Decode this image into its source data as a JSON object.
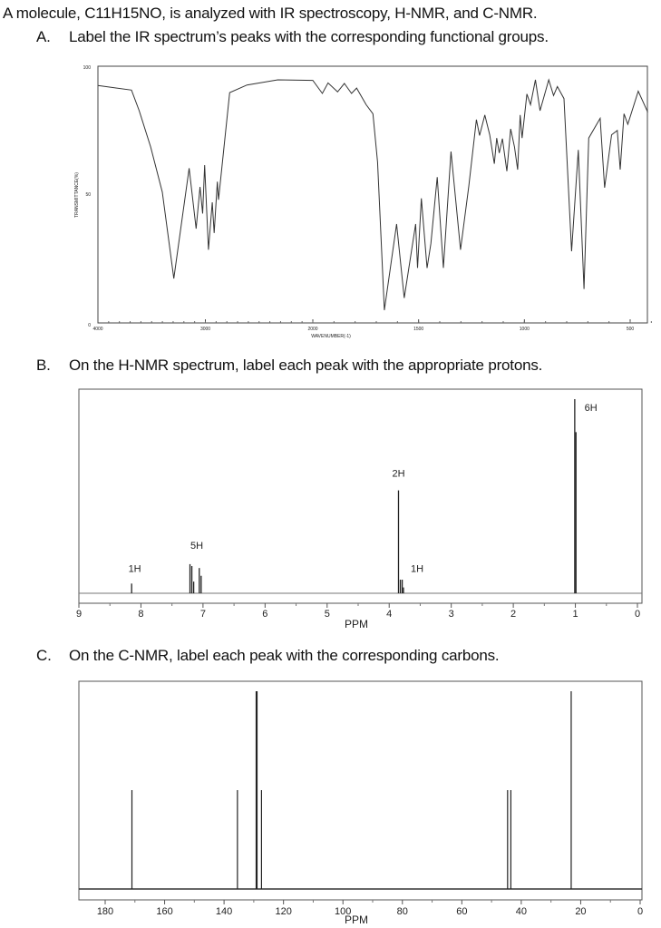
{
  "header": {
    "title": "A molecule, C11H15NO, is analyzed with IR spectroscopy, H-NMR, and C-NMR."
  },
  "questions": [
    {
      "letter": "A.",
      "text": "Label the IR spectrum’s peaks with the corresponding functional groups."
    },
    {
      "letter": "B.",
      "text": "On the H-NMR spectrum, label each peak with the appropriate protons."
    },
    {
      "letter": "C.",
      "text": "On the C-NMR, label each peak with the corresponding carbons."
    }
  ],
  "chart_data": [
    {
      "type": "line",
      "xlabel": "WAVENUMBER(-1)",
      "ylabel": "TRANSMITTANCE(%)",
      "xlim": [
        4000,
        400
      ],
      "ylim": [
        0,
        100
      ],
      "xticks": [
        "4000",
        "3000",
        "2000",
        "1500",
        "1000",
        "500"
      ],
      "yticks": [
        "100",
        "50",
        "0"
      ],
      "x": [
        4000,
        3688,
        3616,
        3509,
        3401,
        3294,
        3151,
        3086,
        3050,
        3025,
        3007,
        2971,
        2936,
        2918,
        2889,
        2878,
        2774,
        2613,
        2326,
        2000,
        1955,
        1928,
        1883,
        1851,
        1817,
        1793,
        1748,
        1716,
        1694,
        1662,
        1604,
        1568,
        1514,
        1505,
        1487,
        1460,
        1442,
        1412,
        1383,
        1347,
        1302,
        1263,
        1227,
        1212,
        1187,
        1164,
        1142,
        1131,
        1119,
        1104,
        1083,
        1065,
        1047,
        1032,
        1020,
        1011,
        988,
        971,
        948,
        926,
        885,
        862,
        844,
        813,
        777,
        745,
        718,
        696,
        642,
        621,
        588,
        561,
        547,
        529,
        511,
        462,
        417
      ],
      "y": [
        92.5,
        90.7,
        82.7,
        68.5,
        51,
        17.3,
        60.3,
        36.7,
        53,
        42.6,
        61.5,
        28.5,
        47,
        35,
        55,
        48,
        89.7,
        92.7,
        94.7,
        94.5,
        89.4,
        93.5,
        90,
        93.3,
        89.4,
        91.5,
        85,
        81.5,
        62.7,
        5,
        38.5,
        9.7,
        38.5,
        21.4,
        48.5,
        21.4,
        30.9,
        56.8,
        21.4,
        66.8,
        28.5,
        53.2,
        79.2,
        73,
        81,
        73.3,
        62,
        72,
        66.2,
        71.8,
        59.1,
        75.6,
        68.6,
        59.7,
        81,
        72,
        89.2,
        85,
        94.7,
        82.7,
        94.7,
        88.6,
        92.1,
        87.4,
        27.9,
        67.4,
        13.2,
        72,
        79.7,
        52.7,
        73.3,
        75,
        59.7,
        81.5,
        77.4,
        90.3,
        82.1
      ]
    },
    {
      "type": "line",
      "xlabel": "PPM",
      "xlim": [
        9,
        0
      ],
      "xticks": [
        "9",
        "8",
        "7",
        "6",
        "5",
        "4",
        "3",
        "2",
        "1",
        "0"
      ],
      "peaks": [
        {
          "ppm": 8.15,
          "height": 0.05
        },
        {
          "ppm": 7.21,
          "height": 0.15
        },
        {
          "ppm": 7.18,
          "height": 0.14
        },
        {
          "ppm": 7.15,
          "height": 0.06
        },
        {
          "ppm": 7.06,
          "height": 0.13
        },
        {
          "ppm": 7.03,
          "height": 0.09
        },
        {
          "ppm": 3.85,
          "height": 0.53
        },
        {
          "ppm": 3.82,
          "height": 0.07
        },
        {
          "ppm": 3.79,
          "height": 0.07
        },
        {
          "ppm": 3.77,
          "height": 0.03
        },
        {
          "ppm": 1.01,
          "height": 1.0
        },
        {
          "ppm": 0.99,
          "height": 0.83
        }
      ],
      "labels": [
        {
          "text": "1H",
          "ppm": 8.1,
          "height": 0.11
        },
        {
          "text": "5H",
          "ppm": 7.1,
          "height": 0.23
        },
        {
          "text": "2H",
          "ppm": 3.85,
          "height": 0.6
        },
        {
          "text": "1H",
          "ppm": 3.55,
          "height": 0.11
        },
        {
          "text": "6H",
          "ppm": 0.75,
          "height": 0.94
        }
      ]
    },
    {
      "type": "bar",
      "xlabel": "PPM",
      "xlim": [
        190,
        0
      ],
      "xticks": [
        "180",
        "160",
        "140",
        "120",
        "100",
        "80",
        "60",
        "40",
        "20",
        "0"
      ],
      "peaks": [
        {
          "ppm": 171,
          "height": 0.5
        },
        {
          "ppm": 135.5,
          "height": 0.5
        },
        {
          "ppm": 129.2,
          "height": 1.0
        },
        {
          "ppm": 128.9,
          "height": 1.0
        },
        {
          "ppm": 127.4,
          "height": 0.5
        },
        {
          "ppm": 44.6,
          "height": 0.5
        },
        {
          "ppm": 43.5,
          "height": 0.5
        },
        {
          "ppm": 23.2,
          "height": 1.0
        }
      ]
    }
  ]
}
